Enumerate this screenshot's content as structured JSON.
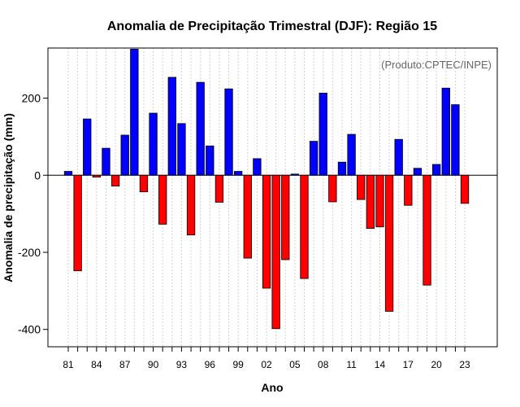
{
  "chart_data": {
    "type": "bar",
    "title": "Anomalia de Precipitação Trimestral (DJF): Região 15",
    "xlabel": "Ano",
    "ylabel": "Anomalia de precipitação (mm)",
    "annotation": "(Produto:CPTEC/INPE)",
    "ylim": [
      -445,
      330
    ],
    "yticks": [
      -400,
      -200,
      0,
      200
    ],
    "xtick_labels": [
      "81",
      "84",
      "87",
      "90",
      "93",
      "96",
      "99",
      "02",
      "05",
      "08",
      "11",
      "14",
      "17",
      "20",
      "23"
    ],
    "categories": [
      "1981",
      "1982",
      "1983",
      "1984",
      "1985",
      "1986",
      "1987",
      "1988",
      "1989",
      "1990",
      "1991",
      "1992",
      "1993",
      "1994",
      "1995",
      "1996",
      "1997",
      "1998",
      "1999",
      "2000",
      "2001",
      "2002",
      "2003",
      "2004",
      "2005",
      "2006",
      "2007",
      "2008",
      "2009",
      "2010",
      "2011",
      "2012",
      "2013",
      "2014",
      "2015",
      "2016",
      "2017",
      "2018",
      "2019",
      "2020",
      "2021",
      "2022",
      "2023"
    ],
    "values": [
      10,
      -248,
      146,
      -5,
      70,
      -28,
      104,
      327,
      -43,
      161,
      -127,
      254,
      134,
      -155,
      241,
      76,
      -70,
      224,
      10,
      -215,
      43,
      -293,
      -398,
      -219,
      3,
      -268,
      88,
      213,
      -69,
      34,
      106,
      -63,
      -138,
      -134,
      -353,
      93,
      -78,
      18,
      -285,
      28,
      226,
      183,
      -73
    ],
    "colors": {
      "positive": "#0000ff",
      "negative": "#ff0000",
      "grid": "#d3d3d3",
      "annotation": "#666666"
    }
  }
}
